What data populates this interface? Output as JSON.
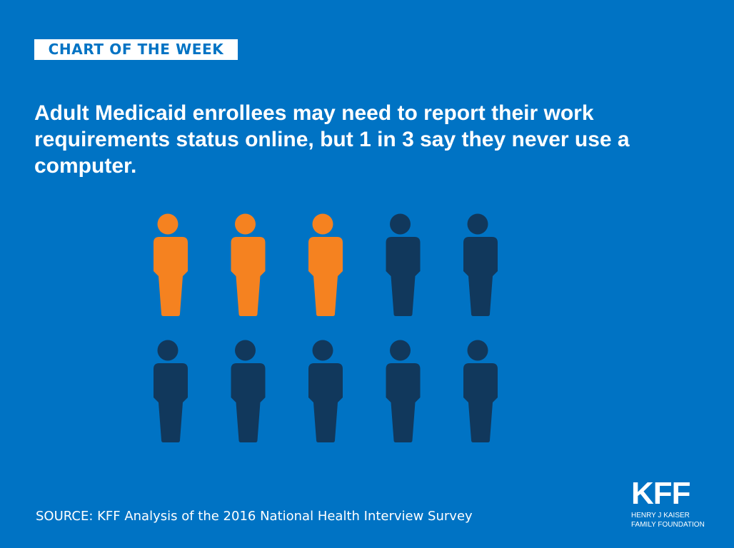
{
  "header": {
    "badge": "CHART OF THE WEEK"
  },
  "title": "Adult Medicaid enrollees may need to report their work requirements status online, but 1 in 3 say they never use a computer.",
  "source": "SOURCE: KFF Analysis of the 2016 National Health Interview Survey",
  "logo": {
    "mark": "KFF",
    "line1": "HENRY J KAISER",
    "line2": "FAMILY FOUNDATION"
  },
  "chart_data": {
    "type": "pictogram",
    "total": 10,
    "highlighted": 3,
    "highlight_label": "never use a computer",
    "colors": {
      "highlight": "#f58220",
      "rest": "#11385c",
      "background": "#0073c4"
    }
  }
}
